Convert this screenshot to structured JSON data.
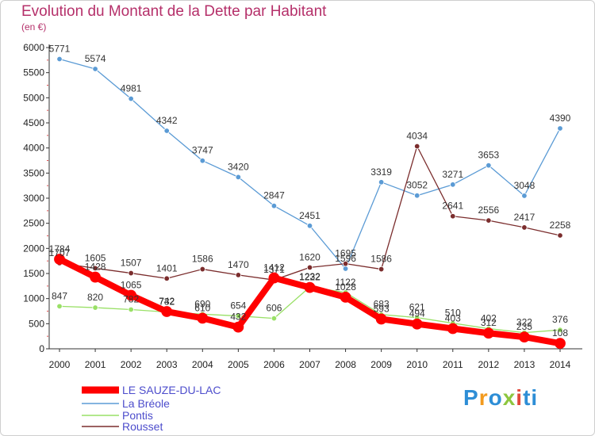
{
  "chart_data": {
    "type": "line",
    "title": "Evolution du Montant de la Dette par Habitant",
    "subtitle": "(en €)",
    "x": [
      2000,
      2001,
      2002,
      2003,
      2004,
      2005,
      2006,
      2007,
      2008,
      2009,
      2010,
      2011,
      2012,
      2013,
      2014
    ],
    "ylim": [
      0,
      6000
    ],
    "yticks": [
      0,
      500,
      1000,
      1500,
      2000,
      2500,
      3000,
      3500,
      4000,
      4500,
      5000,
      5500,
      6000
    ],
    "grid": false,
    "legend_position": "bottom-left",
    "series": [
      {
        "name": "LE SAUZE-DU-LAC",
        "color": "#ff0000",
        "values": [
          1784,
          1428,
          1065,
          742,
          610,
          432,
          1412,
          1222,
          1028,
          593,
          494,
          403,
          312,
          235,
          108
        ],
        "labels": [
          "1784",
          "1428",
          "1065",
          "742",
          "610",
          "432",
          "1412",
          "1222",
          "1028",
          "593",
          "494",
          "403",
          "312",
          "235",
          "108"
        ]
      },
      {
        "name": "La Bréole",
        "color": "#5b9bd5",
        "values": [
          5771,
          5574,
          4981,
          4342,
          3747,
          3420,
          2847,
          2451,
          1596,
          3319,
          3052,
          3271,
          3653,
          3048,
          4390
        ],
        "labels": [
          "5771",
          "5574",
          "4981",
          "4342",
          "3747",
          "3420",
          "2847",
          "2451",
          "1596",
          "3319",
          "3052",
          "3271",
          "3653",
          "3048",
          "4390"
        ]
      },
      {
        "name": "Pontis",
        "color": "#99e066",
        "values": [
          847,
          820,
          782,
          732,
          690,
          654,
          606,
          1232,
          1122,
          683,
          621,
          510,
          402,
          322,
          376
        ],
        "labels": [
          "847",
          "820",
          "782",
          "732",
          "690",
          "654",
          "606",
          "1232",
          "1122",
          "683",
          "621",
          "510",
          "402",
          "322",
          "376"
        ]
      },
      {
        "name": "Rousset",
        "color": "#7b2d2d",
        "values": [
          1707,
          1605,
          1507,
          1401,
          1586,
          1470,
          1371,
          1620,
          1695,
          1586,
          4034,
          2641,
          2556,
          2417,
          2258
        ],
        "labels": [
          "1707",
          "1605",
          "1507",
          "1401",
          "1586",
          "1470",
          "1371",
          "1620",
          "1695",
          "1586",
          "4034",
          "2641",
          "2556",
          "2417",
          "2258"
        ]
      }
    ]
  },
  "logo": {
    "letters": [
      "P",
      "r",
      "o",
      "x",
      "i",
      "t",
      "i"
    ]
  }
}
